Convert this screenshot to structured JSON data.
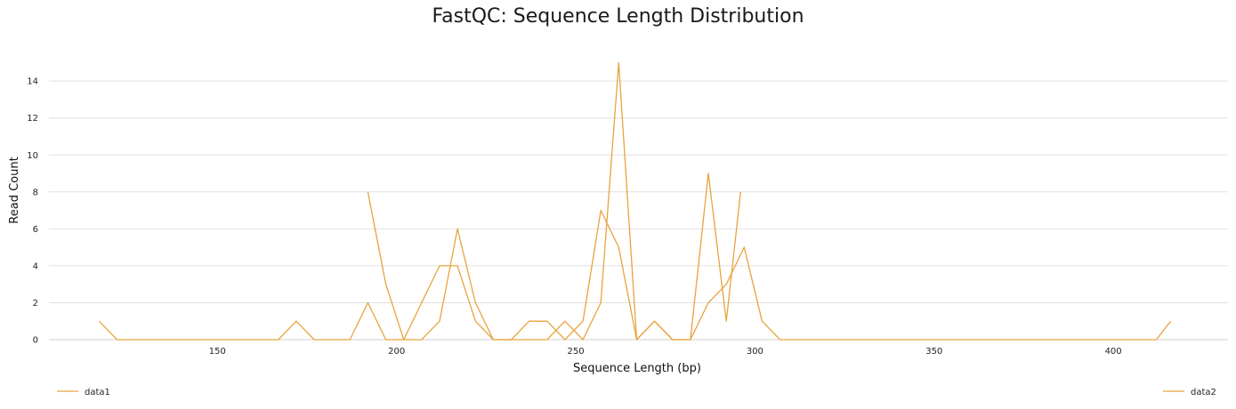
{
  "chart_data": {
    "type": "line",
    "title": "FastQC: Sequence Length Distribution",
    "xlabel": "Sequence Length (bp)",
    "ylabel": "Read Count",
    "xlim": [
      103,
      432
    ],
    "ylim": [
      0,
      15.5
    ],
    "x_ticks": [
      150,
      200,
      250,
      300,
      350,
      400
    ],
    "y_ticks": [
      0,
      2,
      4,
      6,
      8,
      10,
      12,
      14
    ],
    "grid": "horizontal",
    "legend_position": "bottom",
    "line_color": "#e8a33d",
    "series": [
      {
        "name": "data1",
        "points": [
          [
            117,
            1
          ],
          [
            122,
            0
          ],
          [
            167,
            0
          ],
          [
            172,
            1
          ],
          [
            177,
            0
          ],
          [
            187,
            0
          ],
          [
            192,
            2
          ],
          [
            197,
            0
          ],
          [
            207,
            0
          ],
          [
            212,
            1
          ],
          [
            217,
            6
          ],
          [
            222,
            2
          ],
          [
            227,
            0
          ],
          [
            232,
            0
          ],
          [
            237,
            1
          ],
          [
            242,
            1
          ],
          [
            247,
            0
          ],
          [
            252,
            1
          ],
          [
            257,
            7
          ],
          [
            262,
            5
          ],
          [
            267,
            0
          ],
          [
            272,
            1
          ],
          [
            277,
            0
          ],
          [
            282,
            0
          ],
          [
            287,
            9
          ],
          [
            292,
            1
          ],
          [
            296,
            8
          ]
        ]
      },
      {
        "name": "data2",
        "points": [
          [
            192,
            8
          ],
          [
            197,
            3
          ],
          [
            202,
            0
          ],
          [
            207,
            2
          ],
          [
            212,
            4
          ],
          [
            217,
            4
          ],
          [
            222,
            1
          ],
          [
            227,
            0
          ],
          [
            242,
            0
          ],
          [
            247,
            1
          ],
          [
            252,
            0
          ],
          [
            257,
            2
          ],
          [
            262,
            15
          ],
          [
            267,
            0
          ],
          [
            272,
            1
          ],
          [
            277,
            0
          ],
          [
            282,
            0
          ],
          [
            287,
            2
          ],
          [
            292,
            3
          ],
          [
            297,
            5
          ],
          [
            302,
            1
          ],
          [
            307,
            0
          ],
          [
            412,
            0
          ],
          [
            416,
            1
          ]
        ]
      }
    ]
  }
}
